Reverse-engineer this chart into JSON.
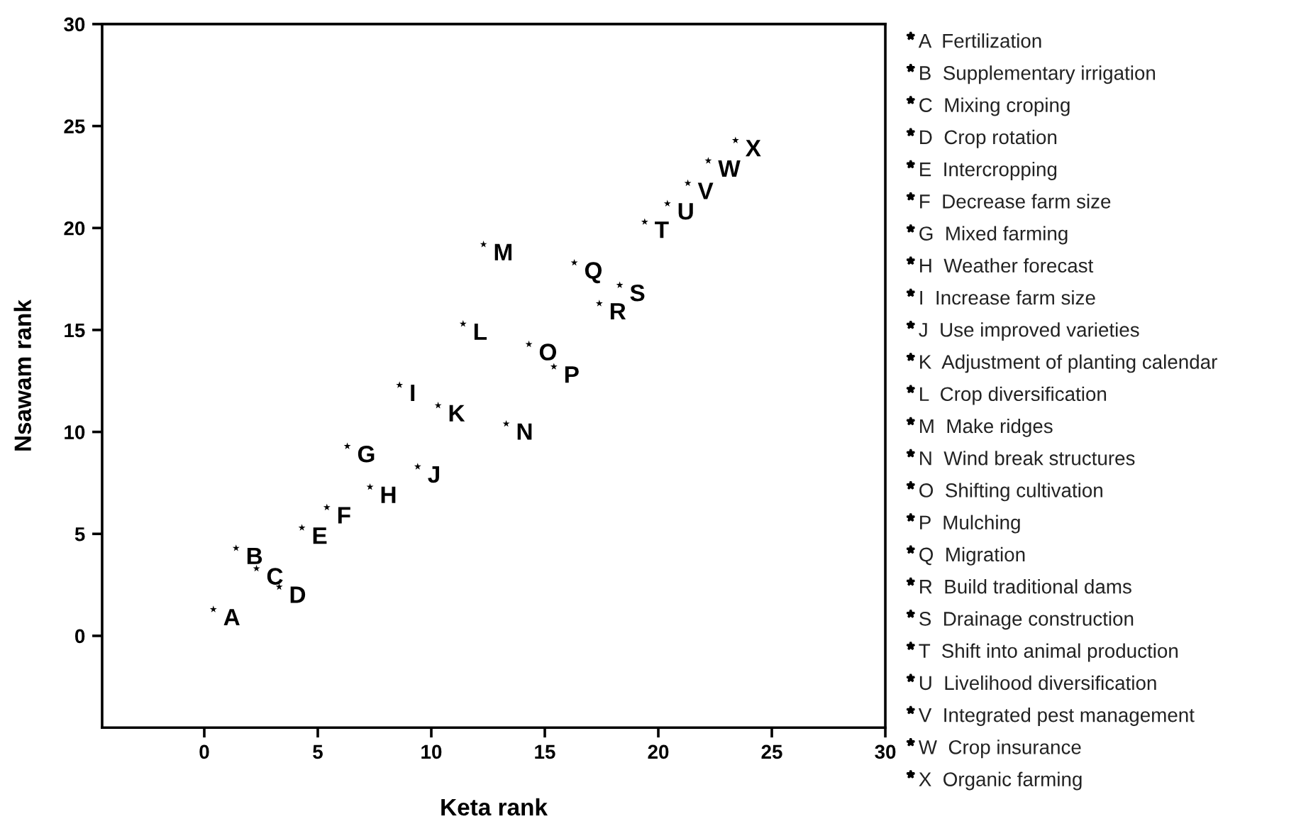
{
  "chart_data": {
    "type": "scatter",
    "xlabel": "Keta rank",
    "ylabel": "Nsawam rank",
    "xlim": [
      -4.5,
      30
    ],
    "ylim": [
      -4.5,
      30
    ],
    "xticks": [
      0,
      5,
      10,
      15,
      20,
      25,
      30
    ],
    "yticks": [
      0,
      5,
      10,
      15,
      20,
      25,
      30
    ],
    "grid": false,
    "marker": "star",
    "series": [
      {
        "color": "#000000",
        "x": [
          0.4,
          1.4,
          2.3,
          3.3,
          4.3,
          5.4,
          6.3,
          7.3,
          8.6,
          9.4,
          10.3,
          11.4,
          12.3,
          13.3,
          14.3,
          15.4,
          16.3,
          17.4,
          18.3,
          19.4,
          20.4,
          21.3,
          22.2,
          23.4
        ],
        "values": [
          1.3,
          4.3,
          3.3,
          2.4,
          5.3,
          6.3,
          9.3,
          7.3,
          12.3,
          8.3,
          11.3,
          15.3,
          19.2,
          10.4,
          14.3,
          13.2,
          18.3,
          16.3,
          17.2,
          20.3,
          21.2,
          22.2,
          23.3,
          24.3
        ]
      }
    ],
    "annotations": [
      {
        "text": "A",
        "x": 0.4,
        "y": 1.3
      },
      {
        "text": "B",
        "x": 1.4,
        "y": 4.3
      },
      {
        "text": "C",
        "x": 2.3,
        "y": 3.3
      },
      {
        "text": "D",
        "x": 3.3,
        "y": 2.4
      },
      {
        "text": "E",
        "x": 4.3,
        "y": 5.3
      },
      {
        "text": "F",
        "x": 5.4,
        "y": 6.3
      },
      {
        "text": "G",
        "x": 6.3,
        "y": 9.3
      },
      {
        "text": "H",
        "x": 7.3,
        "y": 7.3
      },
      {
        "text": "I",
        "x": 8.6,
        "y": 12.3
      },
      {
        "text": "J",
        "x": 9.4,
        "y": 8.3
      },
      {
        "text": "K",
        "x": 10.3,
        "y": 11.3
      },
      {
        "text": "L",
        "x": 11.4,
        "y": 15.3
      },
      {
        "text": "M",
        "x": 12.3,
        "y": 19.2
      },
      {
        "text": "N",
        "x": 13.3,
        "y": 10.4
      },
      {
        "text": "O",
        "x": 14.3,
        "y": 14.3
      },
      {
        "text": "P",
        "x": 15.4,
        "y": 13.2
      },
      {
        "text": "Q",
        "x": 16.3,
        "y": 18.3
      },
      {
        "text": "R",
        "x": 17.4,
        "y": 16.3
      },
      {
        "text": "S",
        "x": 18.3,
        "y": 17.2
      },
      {
        "text": "T",
        "x": 19.4,
        "y": 20.3
      },
      {
        "text": "U",
        "x": 20.4,
        "y": 21.2
      },
      {
        "text": "V",
        "x": 21.3,
        "y": 22.2
      },
      {
        "text": "W",
        "x": 22.2,
        "y": 23.3
      },
      {
        "text": "X",
        "x": 23.4,
        "y": 24.3
      },
      "A  Fertilization",
      "B  Supplementary irrigation",
      "C  Mixing croping",
      "D  Crop rotation",
      "E  Intercropping",
      "F  Decrease farm size",
      "G  Mixed farming",
      "H  Weather forecast",
      "I  Increase farm size",
      "J  Use improved varieties",
      "K  Adjustment of planting calendar",
      "L  Crop diversification",
      "M  Make ridges",
      "N  Wind break structures",
      "O  Shifting cultivation",
      "P  Mulching",
      "Q  Migration",
      "R  Build traditional dams",
      "S  Drainage construction",
      "T  Shift into animal production",
      "U  Livelihood diversification",
      "V  Integrated pest management",
      "W  Crop insurance",
      "X  Organic farming"
    ]
  }
}
